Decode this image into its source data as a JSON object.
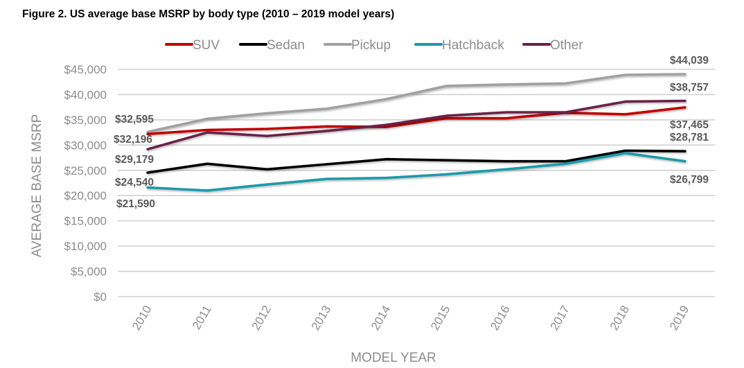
{
  "figure_title": "Figure 2. US average base MSRP by body type (2010 – 2019 model years)",
  "chart_data": {
    "type": "line",
    "title": "Figure 2. US average base MSRP by body type (2010 – 2019 model years)",
    "xlabel": "MODEL YEAR",
    "ylabel": "AVERAGE BASE MSRP",
    "categories": [
      "2010",
      "2011",
      "2012",
      "2013",
      "2014",
      "2015",
      "2016",
      "2017",
      "2018",
      "2019"
    ],
    "ylim": [
      0,
      45000
    ],
    "yticks": [
      0,
      5000,
      10000,
      15000,
      20000,
      25000,
      30000,
      35000,
      40000,
      45000
    ],
    "ytick_labels": [
      "$0",
      "$5,000",
      "$10,000",
      "$15,000",
      "$20,000",
      "$25,000",
      "$30,000",
      "$35,000",
      "$40,000",
      "$45,000"
    ],
    "grid": true,
    "legend_position": "top",
    "series": [
      {
        "name": "SUV",
        "color": "#c00000",
        "values": [
          32196,
          33000,
          33200,
          33700,
          33600,
          35300,
          35300,
          36400,
          36100,
          37465
        ]
      },
      {
        "name": "Sedan",
        "color": "#000000",
        "values": [
          24540,
          26300,
          25200,
          26200,
          27200,
          27000,
          26800,
          26800,
          28900,
          28781
        ]
      },
      {
        "name": "Pickup",
        "color": "#a0a0a2",
        "values": [
          32595,
          35200,
          36300,
          37200,
          39100,
          41700,
          42000,
          42200,
          43900,
          44039
        ]
      },
      {
        "name": "Hatchback",
        "color": "#1b9aaa",
        "values": [
          21590,
          21000,
          22200,
          23300,
          23500,
          24200,
          25200,
          26300,
          28400,
          26799
        ]
      },
      {
        "name": "Other",
        "color": "#6b2048",
        "values": [
          29179,
          32500,
          31800,
          32800,
          34000,
          35800,
          36500,
          36500,
          38600,
          38757
        ]
      }
    ],
    "annotations": [
      {
        "series": "Pickup",
        "year": "2010",
        "text": "$32,595"
      },
      {
        "series": "SUV",
        "year": "2010",
        "text": "$32,196"
      },
      {
        "series": "Other",
        "year": "2010",
        "text": "$29,179"
      },
      {
        "series": "Sedan",
        "year": "2010",
        "text": "$24,540"
      },
      {
        "series": "Hatchback",
        "year": "2010",
        "text": "$21,590"
      },
      {
        "series": "Pickup",
        "year": "2019",
        "text": "$44,039"
      },
      {
        "series": "Other",
        "year": "2019",
        "text": "$38,757"
      },
      {
        "series": "SUV",
        "year": "2019",
        "text": "$37,465"
      },
      {
        "series": "Sedan",
        "year": "2019",
        "text": "$28,781"
      },
      {
        "series": "Hatchback",
        "year": "2019",
        "text": "$26,799"
      }
    ]
  }
}
